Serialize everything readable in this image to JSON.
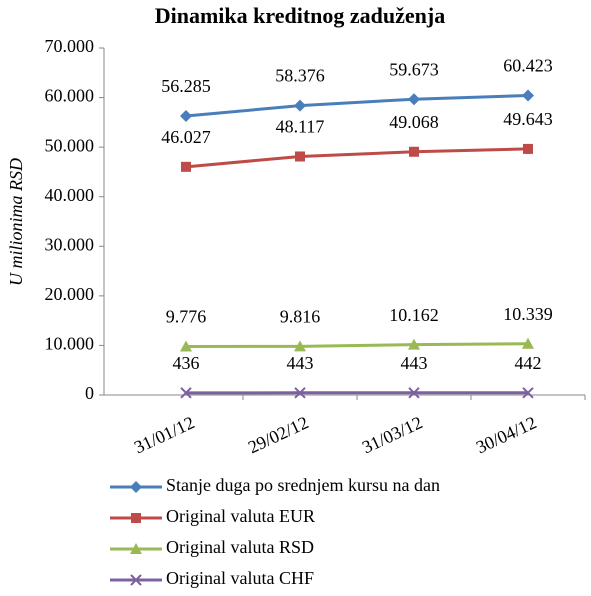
{
  "chart_data": {
    "type": "line",
    "title": "Dinamika kreditnog zaduženja",
    "y_label": "U milionima RSD",
    "categories": [
      "31/01/12",
      "29/02/12",
      "31/03/12",
      "30/04/12"
    ],
    "series": [
      {
        "name": "Stanje duga po srednjem kursu na dan",
        "color": "#4a7ebb",
        "marker": "diamond",
        "values": [
          56285,
          58376,
          59673,
          60423
        ],
        "value_labels": [
          "56.285",
          "58.376",
          "59.673",
          "60.423"
        ]
      },
      {
        "name": "Original valuta EUR",
        "color": "#be4b48",
        "marker": "square",
        "values": [
          46027,
          48117,
          49068,
          49643
        ],
        "value_labels": [
          "46.027",
          "48.117",
          "49.068",
          "49.643"
        ]
      },
      {
        "name": "Original valuta RSD",
        "color": "#98b954",
        "marker": "triangle",
        "values": [
          9776,
          9816,
          10162,
          10339
        ],
        "value_labels": [
          "9.776",
          "9.816",
          "10.162",
          "10.339"
        ]
      },
      {
        "name": "Original valuta CHF",
        "color": "#7d60a0",
        "marker": "x",
        "values": [
          436,
          443,
          443,
          442
        ]
      }
    ],
    "ylim": [
      0,
      70000
    ],
    "yticks": [
      0,
      {
        "value": 10000,
        "label": "10.000"
      },
      {
        "value": 20000,
        "label": "20.000"
      },
      {
        "value": 30000,
        "label": "30.000"
      },
      {
        "value": 40000,
        "label": "40.000"
      },
      {
        "value": 50000,
        "label": "50.000"
      },
      {
        "value": 60000,
        "label": "60.000"
      },
      {
        "value": 70000,
        "label": "70.000"
      }
    ],
    "grid": false,
    "legend": "bottom"
  }
}
